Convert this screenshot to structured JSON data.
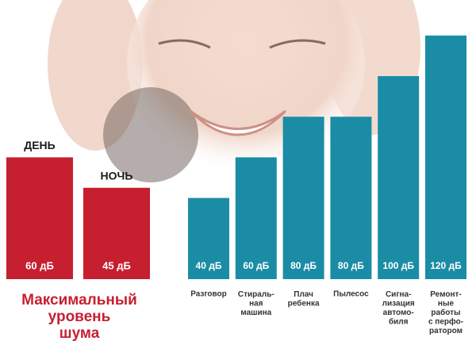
{
  "chart_data": [
    {
      "type": "bar",
      "title": "Максимальный\nуровень\nшума",
      "categories": [
        "ДЕНЬ",
        "НОЧЬ"
      ],
      "values": [
        60,
        45
      ],
      "value_labels": [
        "60 дБ",
        "45 дБ"
      ],
      "color": "#c61f30"
    },
    {
      "type": "bar",
      "categories": [
        "Разговор",
        "Стираль-\nная\nмашина",
        "Плач\nребенка",
        "Пылесос",
        "Сигна-\nлизация\nавтомо-\nбиля",
        "Ремонт-\nные\nработы\nс перфо-\nратором"
      ],
      "values": [
        40,
        60,
        80,
        80,
        100,
        120
      ],
      "value_labels": [
        "40 дБ",
        "60 дБ",
        "80 дБ",
        "80 дБ",
        "100 дБ",
        "120 дБ"
      ],
      "color": "#1b8ca6"
    }
  ]
}
